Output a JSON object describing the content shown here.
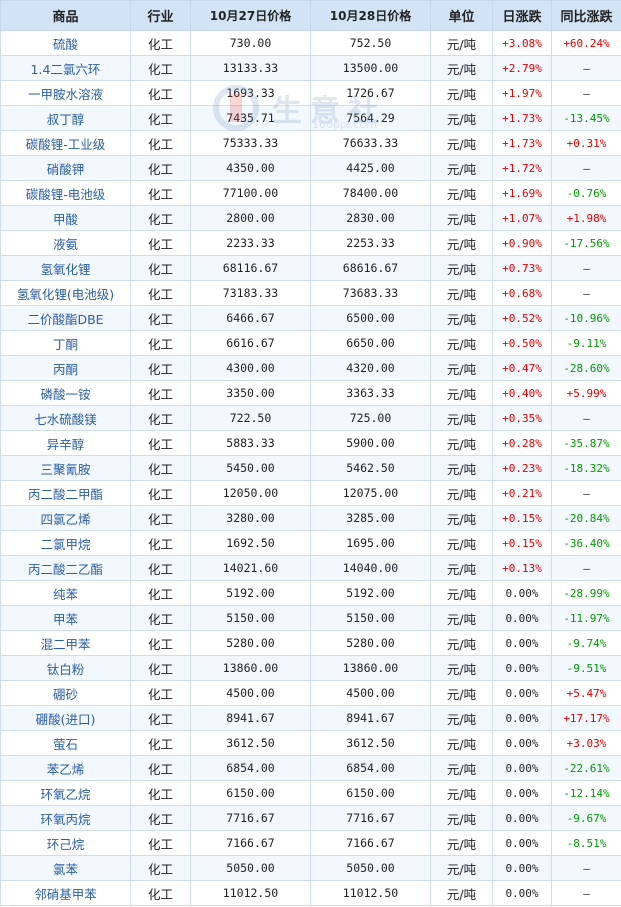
{
  "headers": [
    "商品",
    "行业",
    "10月27日价格",
    "10月28日价格",
    "单位",
    "日涨跌",
    "同比涨跌"
  ],
  "watermark": {
    "text": "生意社",
    "url": "100ppi.com"
  },
  "rows": [
    [
      "硫酸",
      "化工",
      "730.00",
      "752.50",
      "元/吨",
      "+3.08%",
      "+60.24%"
    ],
    [
      "1.4二氯六环",
      "化工",
      "13133.33",
      "13500.00",
      "元/吨",
      "+2.79%",
      "—"
    ],
    [
      "一甲胺水溶液",
      "化工",
      "1693.33",
      "1726.67",
      "元/吨",
      "+1.97%",
      "—"
    ],
    [
      "叔丁醇",
      "化工",
      "7435.71",
      "7564.29",
      "元/吨",
      "+1.73%",
      "-13.45%"
    ],
    [
      "碳酸锂-工业级",
      "化工",
      "75333.33",
      "76633.33",
      "元/吨",
      "+1.73%",
      "+0.31%"
    ],
    [
      "硝酸钾",
      "化工",
      "4350.00",
      "4425.00",
      "元/吨",
      "+1.72%",
      "—"
    ],
    [
      "碳酸锂-电池级",
      "化工",
      "77100.00",
      "78400.00",
      "元/吨",
      "+1.69%",
      "-0.76%"
    ],
    [
      "甲酸",
      "化工",
      "2800.00",
      "2830.00",
      "元/吨",
      "+1.07%",
      "+1.98%"
    ],
    [
      "液氨",
      "化工",
      "2233.33",
      "2253.33",
      "元/吨",
      "+0.90%",
      "-17.56%"
    ],
    [
      "氢氧化锂",
      "化工",
      "68116.67",
      "68616.67",
      "元/吨",
      "+0.73%",
      "—"
    ],
    [
      "氢氧化锂(电池级)",
      "化工",
      "73183.33",
      "73683.33",
      "元/吨",
      "+0.68%",
      "—"
    ],
    [
      "二价酸酯DBE",
      "化工",
      "6466.67",
      "6500.00",
      "元/吨",
      "+0.52%",
      "-10.96%"
    ],
    [
      "丁酮",
      "化工",
      "6616.67",
      "6650.00",
      "元/吨",
      "+0.50%",
      "-9.11%"
    ],
    [
      "丙酮",
      "化工",
      "4300.00",
      "4320.00",
      "元/吨",
      "+0.47%",
      "-28.60%"
    ],
    [
      "磷酸一铵",
      "化工",
      "3350.00",
      "3363.33",
      "元/吨",
      "+0.40%",
      "+5.99%"
    ],
    [
      "七水硫酸镁",
      "化工",
      "722.50",
      "725.00",
      "元/吨",
      "+0.35%",
      "—"
    ],
    [
      "异辛醇",
      "化工",
      "5883.33",
      "5900.00",
      "元/吨",
      "+0.28%",
      "-35.87%"
    ],
    [
      "三聚氰胺",
      "化工",
      "5450.00",
      "5462.50",
      "元/吨",
      "+0.23%",
      "-18.32%"
    ],
    [
      "丙二酸二甲酯",
      "化工",
      "12050.00",
      "12075.00",
      "元/吨",
      "+0.21%",
      "—"
    ],
    [
      "四氯乙烯",
      "化工",
      "3280.00",
      "3285.00",
      "元/吨",
      "+0.15%",
      "-20.84%"
    ],
    [
      "二氯甲烷",
      "化工",
      "1692.50",
      "1695.00",
      "元/吨",
      "+0.15%",
      "-36.40%"
    ],
    [
      "丙二酸二乙酯",
      "化工",
      "14021.60",
      "14040.00",
      "元/吨",
      "+0.13%",
      "—"
    ],
    [
      "纯苯",
      "化工",
      "5192.00",
      "5192.00",
      "元/吨",
      "0.00%",
      "-28.99%"
    ],
    [
      "甲苯",
      "化工",
      "5150.00",
      "5150.00",
      "元/吨",
      "0.00%",
      "-11.97%"
    ],
    [
      "混二甲苯",
      "化工",
      "5280.00",
      "5280.00",
      "元/吨",
      "0.00%",
      "-9.74%"
    ],
    [
      "钛白粉",
      "化工",
      "13860.00",
      "13860.00",
      "元/吨",
      "0.00%",
      "-9.51%"
    ],
    [
      "硼砂",
      "化工",
      "4500.00",
      "4500.00",
      "元/吨",
      "0.00%",
      "+5.47%"
    ],
    [
      "硼酸(进口)",
      "化工",
      "8941.67",
      "8941.67",
      "元/吨",
      "0.00%",
      "+17.17%"
    ],
    [
      "萤石",
      "化工",
      "3612.50",
      "3612.50",
      "元/吨",
      "0.00%",
      "+3.03%"
    ],
    [
      "苯乙烯",
      "化工",
      "6854.00",
      "6854.00",
      "元/吨",
      "0.00%",
      "-22.61%"
    ],
    [
      "环氧乙烷",
      "化工",
      "6150.00",
      "6150.00",
      "元/吨",
      "0.00%",
      "-12.14%"
    ],
    [
      "环氧丙烷",
      "化工",
      "7716.67",
      "7716.67",
      "元/吨",
      "0.00%",
      "-9.67%"
    ],
    [
      "环己烷",
      "化工",
      "7166.67",
      "7166.67",
      "元/吨",
      "0.00%",
      "-8.51%"
    ],
    [
      "氯苯",
      "化工",
      "5050.00",
      "5050.00",
      "元/吨",
      "0.00%",
      "—"
    ],
    [
      "邻硝基甲苯",
      "化工",
      "11012.50",
      "11012.50",
      "元/吨",
      "0.00%",
      "—"
    ]
  ],
  "colors": {
    "header_bg": "#d3e3f6",
    "row_alt": "#f3f8fe",
    "border": "#cfdded",
    "link": "#2a5ea8",
    "up": "#e00000",
    "down": "#009900"
  }
}
